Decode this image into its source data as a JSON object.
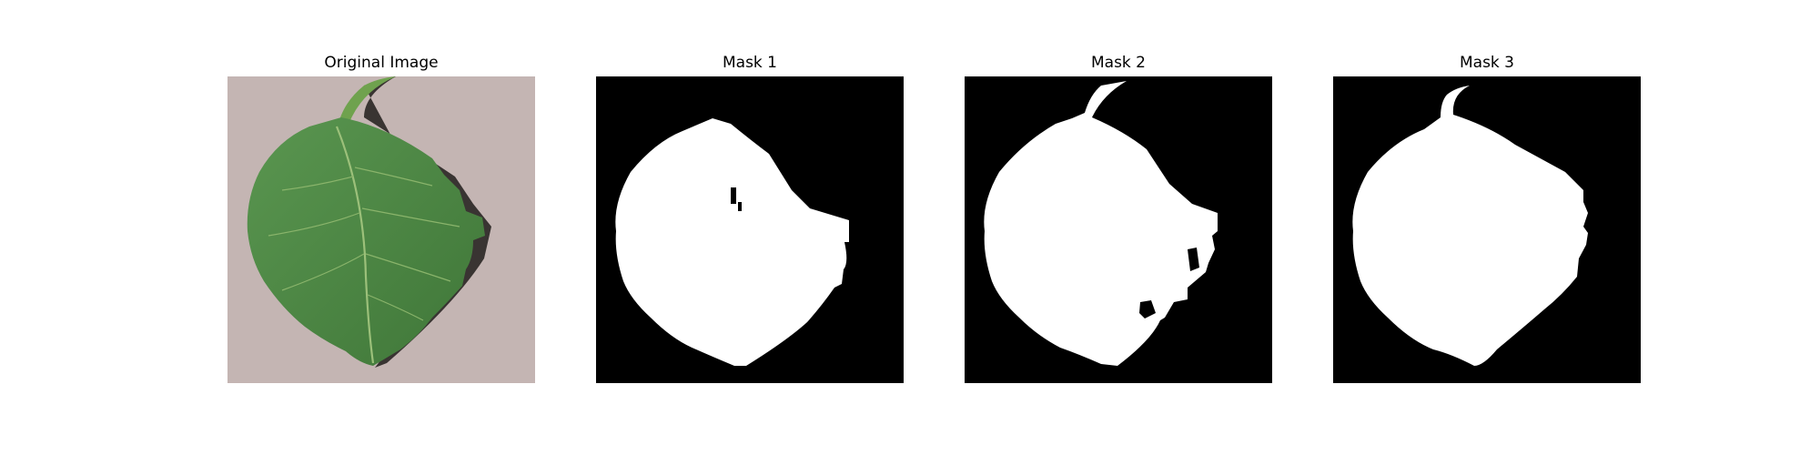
{
  "figure": {
    "panels": [
      {
        "title": "Original Image",
        "content": "leaf-photo"
      },
      {
        "title": "Mask 1",
        "content": "binary-mask"
      },
      {
        "title": "Mask 2",
        "content": "binary-mask"
      },
      {
        "title": "Mask 3",
        "content": "binary-mask"
      }
    ]
  },
  "colors": {
    "background_tan": "#c4b5b3",
    "leaf_green": "#4f8a45",
    "leaf_dark": "#35662f",
    "vein": "#9cc07a",
    "shadow": "#2a2624",
    "mask_bg": "#000000",
    "mask_fg": "#ffffff"
  }
}
